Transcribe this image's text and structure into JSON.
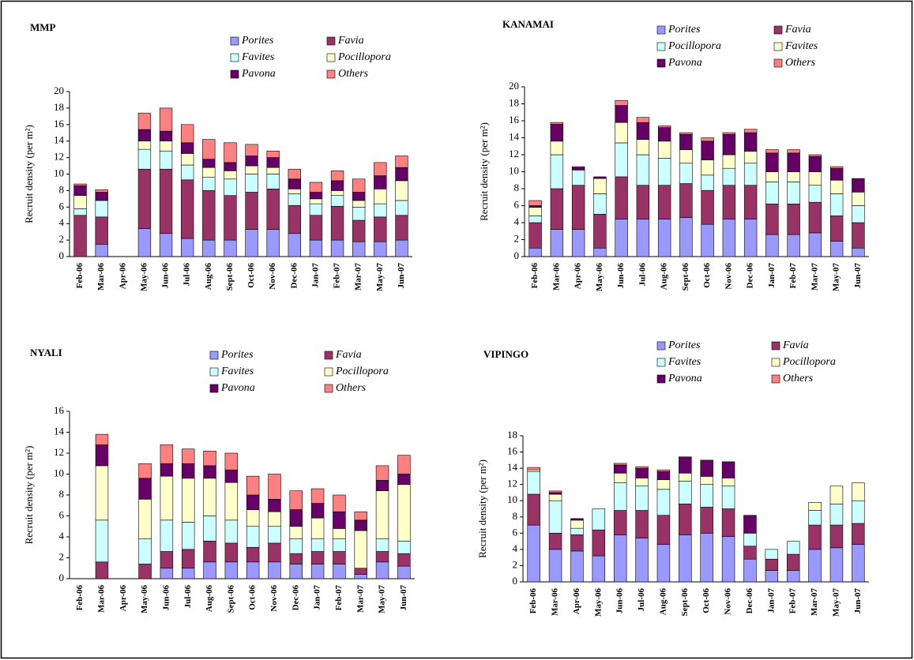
{
  "chart_data": [
    {
      "type": "bar",
      "stacked": true,
      "title": "MMP",
      "y_label": "Recruit density (per m²)",
      "categories": [
        "Feb-06",
        "Mar-06",
        "Apr-06",
        "May-06",
        "Jun-06",
        "Jul-06",
        "Aug-06",
        "Sept-06",
        "Oct-06",
        "Nov-06",
        "Dec-06",
        "Jan-07",
        "Feb-07",
        "Mar-07",
        "May-07",
        "Jun-07"
      ],
      "ylim": [
        0,
        20
      ],
      "yticks": [
        0,
        2,
        4,
        6,
        8,
        10,
        12,
        14,
        16,
        18,
        20
      ],
      "series": [
        {
          "name": "Porites",
          "color": "#9999ff",
          "values": [
            0,
            1.5,
            0,
            3.4,
            2.8,
            2.2,
            2,
            2,
            3.3,
            3.3,
            2.8,
            2,
            2,
            1.8,
            1.8,
            2
          ]
        },
        {
          "name": "Favia",
          "color": "#993366",
          "values": [
            5,
            3.3,
            0,
            7.2,
            7.8,
            7.1,
            6,
            5.4,
            4.5,
            4.9,
            3.4,
            3,
            4.1,
            2.6,
            3,
            3
          ]
        },
        {
          "name": "Favites",
          "color": "#ccffff",
          "values": [
            0.8,
            2,
            0,
            2.4,
            2.2,
            1.8,
            1.6,
            2,
            2.2,
            1.8,
            1.4,
            1.4,
            1.3,
            1.6,
            1.6,
            1.8
          ]
        },
        {
          "name": "Pocillopora",
          "color": "#ffffcc",
          "values": [
            1.6,
            0,
            0,
            1,
            1.2,
            1.4,
            1.2,
            1,
            1,
            0.8,
            0.6,
            0.6,
            0.6,
            0.8,
            1.8,
            2.4
          ]
        },
        {
          "name": "Pavona",
          "color": "#660066",
          "values": [
            1.2,
            1,
            0,
            1.4,
            1.2,
            1.3,
            1,
            1,
            1.2,
            1.2,
            1.2,
            0.8,
            1.2,
            1,
            1.6,
            1.6
          ]
        },
        {
          "name": "Others",
          "color": "#ff8080",
          "values": [
            0.2,
            0.3,
            0,
            2,
            2.8,
            2.2,
            2.4,
            2.4,
            1.4,
            0.8,
            1.2,
            1.2,
            1.2,
            1.6,
            1.6,
            1.4
          ]
        }
      ]
    },
    {
      "type": "bar",
      "stacked": true,
      "title": "KANAMAI",
      "y_label": "Recruit density (per m²)",
      "categories": [
        "Feb-06",
        "Mar-06",
        "Apr-06",
        "May-06",
        "Jun-06",
        "Jul-06",
        "Aug-06",
        "Sept-06",
        "Oct-06",
        "Nov-06",
        "Dec-06",
        "Jan-07",
        "Feb-07",
        "Mar-07",
        "May-07",
        "Jun-07"
      ],
      "ylim": [
        0,
        20
      ],
      "yticks": [
        0,
        2,
        4,
        6,
        8,
        10,
        12,
        14,
        16,
        18,
        20
      ],
      "series": [
        {
          "name": "Porites",
          "color": "#9999ff",
          "values": [
            1,
            3.2,
            3.2,
            1,
            4.4,
            4.4,
            4.4,
            4.6,
            3.8,
            4.4,
            4.4,
            2.6,
            2.6,
            2.8,
            1.8,
            1
          ]
        },
        {
          "name": "Favia",
          "color": "#993366",
          "values": [
            3,
            4.8,
            5.2,
            4,
            5,
            4,
            4,
            4,
            4,
            4,
            4,
            3.6,
            3.6,
            3.6,
            3,
            3
          ]
        },
        {
          "name": "Pocillopora",
          "color": "#ccffff",
          "values": [
            0.8,
            4,
            1.8,
            2.4,
            4,
            3.6,
            3.2,
            2.4,
            1.8,
            2,
            2.6,
            2.6,
            2.6,
            2,
            2.6,
            2
          ]
        },
        {
          "name": "Favites",
          "color": "#ffffcc",
          "values": [
            1,
            1.6,
            0,
            1.8,
            2.4,
            1.8,
            2,
            1.6,
            1.8,
            1.6,
            1.4,
            1.2,
            1.2,
            1.6,
            1.6,
            1.6
          ]
        },
        {
          "name": "Pavona",
          "color": "#660066",
          "values": [
            0.2,
            2,
            0.3,
            0.2,
            2,
            2,
            1.6,
            1.8,
            2.2,
            2.4,
            2.2,
            2.2,
            2.2,
            1.8,
            1.4,
            1.6
          ]
        },
        {
          "name": "Others",
          "color": "#ff8080",
          "values": [
            0.6,
            0.2,
            0.1,
            0,
            0.6,
            0.6,
            0.2,
            0.2,
            0.4,
            0.2,
            0.4,
            0.4,
            0.4,
            0.2,
            0.2,
            0
          ]
        }
      ]
    },
    {
      "type": "bar",
      "stacked": true,
      "title": "NYALI",
      "y_label": "Recruit density (per m²)",
      "categories": [
        "Feb-06",
        "Mar-06",
        "Apr-06",
        "May-06",
        "Jun-06",
        "Jul-06",
        "Aug-06",
        "Sept-06",
        "Oct-06",
        "Nov-06",
        "Dec-06",
        "Jan-07",
        "Feb-07",
        "Mar-07",
        "May-07",
        "Jun-07"
      ],
      "ylim": [
        0,
        16
      ],
      "yticks": [
        0,
        2,
        4,
        6,
        8,
        10,
        12,
        14,
        16
      ],
      "series": [
        {
          "name": "Porites",
          "color": "#9999ff",
          "values": [
            0,
            0,
            0,
            0,
            1,
            1,
            1.6,
            1.6,
            1.6,
            1.6,
            1.4,
            1.4,
            1.4,
            0.4,
            1.6,
            1.2
          ]
        },
        {
          "name": "Favia",
          "color": "#993366",
          "values": [
            0,
            1.6,
            0,
            1.4,
            1.6,
            1.8,
            2,
            1.8,
            1.4,
            1.8,
            1,
            1.2,
            1.2,
            0.6,
            1,
            1.2
          ]
        },
        {
          "name": "Favites",
          "color": "#ccffff",
          "values": [
            0,
            4,
            0,
            2.4,
            3,
            2.6,
            2.4,
            2.2,
            2,
            1.6,
            1.4,
            1.2,
            1.2,
            0,
            1.2,
            1.2
          ]
        },
        {
          "name": "Pocillopora",
          "color": "#ffffcc",
          "values": [
            0,
            5.2,
            0,
            3.8,
            4.2,
            4.2,
            3.6,
            3.6,
            1.6,
            1.4,
            1.2,
            2,
            1,
            3.6,
            4.6,
            5.4
          ]
        },
        {
          "name": "Pavona",
          "color": "#660066",
          "values": [
            0,
            2,
            0,
            2,
            1.2,
            1.4,
            1.2,
            1.2,
            1.4,
            1.2,
            1.6,
            1.4,
            1.6,
            1,
            1,
            1
          ]
        },
        {
          "name": "Others",
          "color": "#ff8080",
          "values": [
            0,
            1,
            0,
            1.4,
            1.8,
            1.4,
            1.4,
            1.6,
            1.8,
            2.4,
            1.8,
            1.4,
            1.6,
            0.8,
            1.4,
            1.8
          ]
        }
      ]
    },
    {
      "type": "bar",
      "stacked": true,
      "title": "VIPINGO",
      "y_label": "Recruit density (per m²)",
      "categories": [
        "Feb-06",
        "Mar-06",
        "Apr-06",
        "May-06",
        "Jun-06",
        "Jul-06",
        "Aug-06",
        "Sept-06",
        "Oct-06",
        "Nov-06",
        "Dec-06",
        "Jan-07",
        "Feb-07",
        "Mar-07",
        "May-07",
        "Jun-07"
      ],
      "ylim": [
        0,
        18
      ],
      "yticks": [
        0,
        2,
        4,
        6,
        8,
        10,
        12,
        14,
        16,
        18
      ],
      "series": [
        {
          "name": "Porites",
          "color": "#9999ff",
          "values": [
            7,
            4,
            3.8,
            3.2,
            5.8,
            5.4,
            4.6,
            5.8,
            6,
            5.6,
            2.8,
            1.4,
            1.4,
            4,
            4.2,
            4.6
          ]
        },
        {
          "name": "Favia",
          "color": "#993366",
          "values": [
            3.8,
            2,
            2,
            3.2,
            3,
            3.4,
            3.6,
            3.8,
            3.2,
            3.4,
            1.6,
            1.4,
            2,
            3,
            2.8,
            2.6
          ]
        },
        {
          "name": "Favites",
          "color": "#ccffff",
          "values": [
            2.8,
            4,
            0.8,
            2.6,
            3.4,
            3,
            3.2,
            2.8,
            2.8,
            2.8,
            1.6,
            1.2,
            1.6,
            1.8,
            2.6,
            2.8
          ]
        },
        {
          "name": "Pocillopora",
          "color": "#ffffcc",
          "values": [
            0.2,
            0.8,
            1,
            0,
            1.2,
            1,
            1.2,
            1,
            1,
            1,
            0,
            0,
            0,
            1,
            2.2,
            2.2
          ]
        },
        {
          "name": "Pavona",
          "color": "#660066",
          "values": [
            0,
            0.2,
            0.2,
            0,
            1,
            1.2,
            1,
            2,
            2,
            2,
            2.2,
            0,
            0,
            0,
            0,
            0
          ]
        },
        {
          "name": "Others",
          "color": "#ff8080",
          "values": [
            0.3,
            0.2,
            0,
            0,
            0.2,
            0.2,
            0.2,
            0,
            0,
            0,
            0,
            0,
            0,
            0,
            0,
            0
          ]
        }
      ]
    }
  ]
}
